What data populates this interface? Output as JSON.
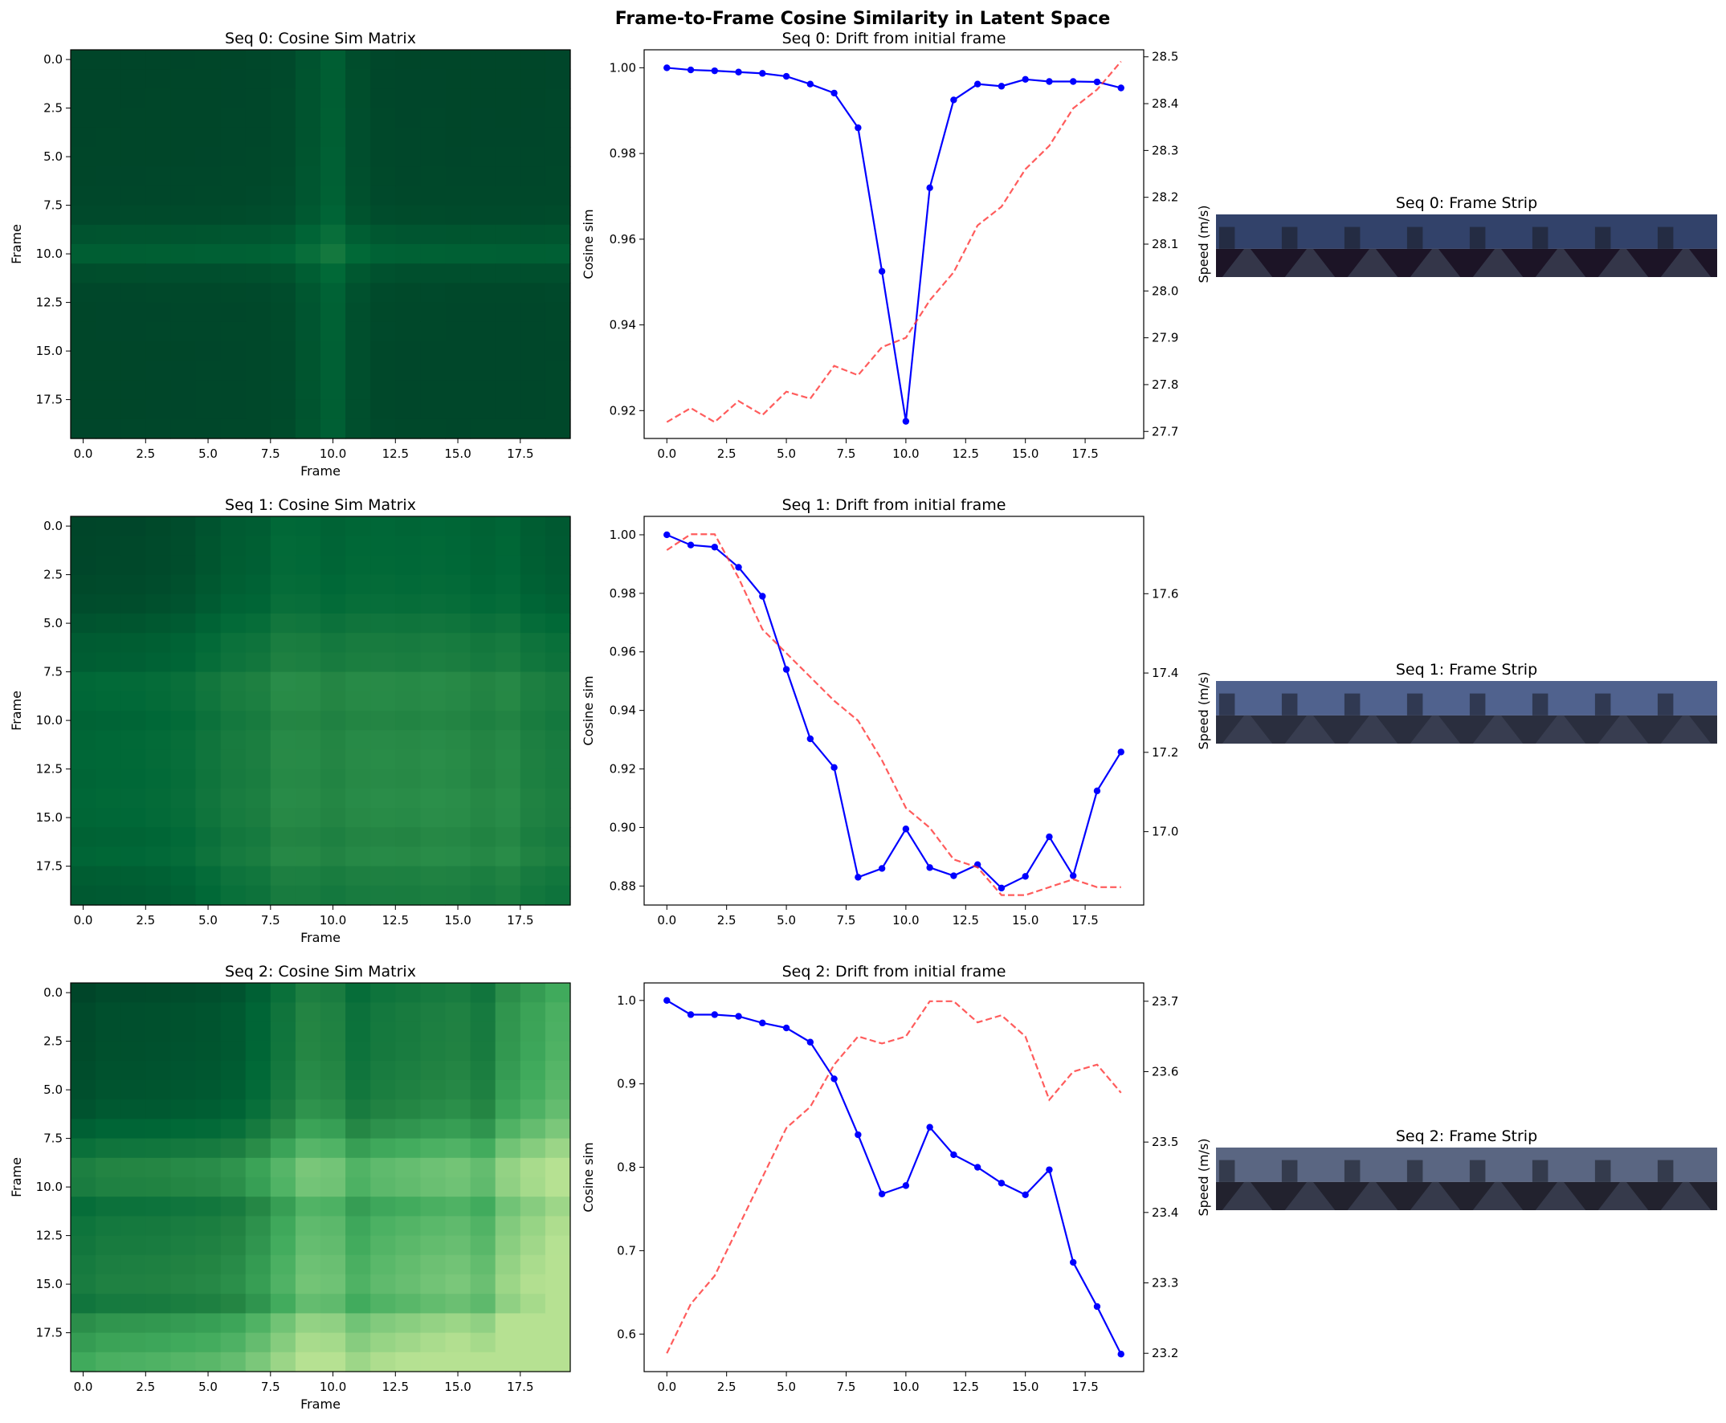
{
  "figure": {
    "suptitle": "Frame-to-Frame Cosine Similarity in Latent Space"
  },
  "colors": {
    "cosine_line": "#0000ff",
    "speed_line": "#ff3333",
    "colormap": "YlGn"
  },
  "chart_data": [
    {
      "type": "heatmap",
      "title": "Seq 0: Cosine Sim Matrix",
      "xlabel": "Frame",
      "ylabel": "Frame",
      "xticks": [
        "0.0",
        "2.5",
        "5.0",
        "7.5",
        "10.0",
        "12.5",
        "15.0",
        "17.5"
      ],
      "yticks": [
        "0.0",
        "2.5",
        "5.0",
        "7.5",
        "10.0",
        "12.5",
        "15.0",
        "17.5"
      ],
      "size": 20,
      "colormap": "YlGn",
      "profile": [
        1.0,
        0.9995,
        0.9993,
        0.999,
        0.9987,
        0.998,
        0.9962,
        0.9941,
        0.986,
        0.9525,
        0.9175,
        0.972,
        0.9925,
        0.9962,
        0.9957,
        0.9973,
        0.9968,
        0.9968,
        0.9967,
        0.9953
      ],
      "color_range": [
        0.45,
        1.0
      ]
    },
    {
      "type": "line",
      "title": "Seq 0: Drift from initial frame",
      "xlabel": "",
      "ylabel": "Cosine sim",
      "y2label": "Speed (m/s)",
      "xticks": [
        "0.0",
        "2.5",
        "5.0",
        "7.5",
        "10.0",
        "12.5",
        "15.0",
        "17.5"
      ],
      "xlim": [
        -0.95,
        19.95
      ],
      "ylim": [
        0.9135,
        1.0042
      ],
      "yticks": [
        "0.92",
        "0.94",
        "0.96",
        "0.98",
        "1.00"
      ],
      "y2lim": [
        27.685,
        28.515
      ],
      "y2ticks": [
        "27.7",
        "27.8",
        "27.9",
        "28.0",
        "28.1",
        "28.2",
        "28.3",
        "28.4",
        "28.5"
      ],
      "x": [
        0,
        1,
        2,
        3,
        4,
        5,
        6,
        7,
        8,
        9,
        10,
        11,
        12,
        13,
        14,
        15,
        16,
        17,
        18,
        19
      ],
      "series": [
        {
          "values": [
            1.0,
            0.9995,
            0.9993,
            0.999,
            0.9987,
            0.998,
            0.9962,
            0.9941,
            0.986,
            0.9525,
            0.9175,
            0.972,
            0.9925,
            0.9962,
            0.9957,
            0.9973,
            0.9968,
            0.9968,
            0.9967,
            0.9953
          ],
          "axis": "left",
          "style": "solid",
          "markers": true
        },
        {
          "values": [
            27.72,
            27.75,
            27.72,
            27.765,
            27.735,
            27.785,
            27.77,
            27.84,
            27.82,
            27.88,
            27.9,
            27.98,
            28.04,
            28.14,
            28.18,
            28.26,
            28.31,
            28.39,
            28.43,
            28.49
          ],
          "axis": "right",
          "style": "dashed",
          "markers": false
        }
      ]
    },
    {
      "type": "heatmap",
      "title": "Seq 1: Cosine Sim Matrix",
      "xlabel": "Frame",
      "ylabel": "Frame",
      "xticks": [
        "0.0",
        "2.5",
        "5.0",
        "7.5",
        "10.0",
        "12.5",
        "15.0",
        "17.5"
      ],
      "yticks": [
        "0.0",
        "2.5",
        "5.0",
        "7.5",
        "10.0",
        "12.5",
        "15.0",
        "17.5"
      ],
      "size": 20,
      "colormap": "YlGn",
      "profile": [
        1.0,
        0.9965,
        0.9958,
        0.9889,
        0.979,
        0.954,
        0.9303,
        0.9205,
        0.883,
        0.886,
        0.8995,
        0.8863,
        0.8835,
        0.8873,
        0.8793,
        0.8833,
        0.8968,
        0.8835,
        0.9125,
        0.9258
      ],
      "color_range": [
        0.45,
        1.0
      ]
    },
    {
      "type": "line",
      "title": "Seq 1: Drift from initial frame",
      "xlabel": "",
      "ylabel": "Cosine sim",
      "y2label": "Speed (m/s)",
      "xticks": [
        "0.0",
        "2.5",
        "5.0",
        "7.5",
        "10.0",
        "12.5",
        "15.0",
        "17.5"
      ],
      "xlim": [
        -0.95,
        19.95
      ],
      "ylim": [
        0.8735,
        1.0063
      ],
      "yticks": [
        "0.88",
        "0.90",
        "0.92",
        "0.94",
        "0.96",
        "0.98",
        "1.00"
      ],
      "y2lim": [
        16.815,
        17.795
      ],
      "y2ticks": [
        "17.0",
        "17.2",
        "17.4",
        "17.6"
      ],
      "x": [
        0,
        1,
        2,
        3,
        4,
        5,
        6,
        7,
        8,
        9,
        10,
        11,
        12,
        13,
        14,
        15,
        16,
        17,
        18,
        19
      ],
      "series": [
        {
          "values": [
            1.0,
            0.9965,
            0.9958,
            0.9889,
            0.979,
            0.954,
            0.9303,
            0.9205,
            0.883,
            0.886,
            0.8995,
            0.8863,
            0.8835,
            0.8873,
            0.8793,
            0.8833,
            0.8968,
            0.8835,
            0.9125,
            0.9258
          ],
          "axis": "left",
          "style": "solid",
          "markers": true
        },
        {
          "values": [
            17.71,
            17.75,
            17.75,
            17.64,
            17.51,
            17.45,
            17.39,
            17.33,
            17.28,
            17.18,
            17.06,
            17.01,
            16.93,
            16.91,
            16.84,
            16.84,
            16.86,
            16.88,
            16.86,
            16.86
          ],
          "axis": "right",
          "style": "dashed",
          "markers": false
        }
      ]
    },
    {
      "type": "heatmap",
      "title": "Seq 2: Cosine Sim Matrix",
      "xlabel": "Frame",
      "ylabel": "Frame",
      "xticks": [
        "0.0",
        "2.5",
        "5.0",
        "7.5",
        "10.0",
        "12.5",
        "15.0",
        "17.5"
      ],
      "yticks": [
        "0.0",
        "2.5",
        "5.0",
        "7.5",
        "10.0",
        "12.5",
        "15.0",
        "17.5"
      ],
      "size": 20,
      "colormap": "YlGn",
      "profile": [
        1.0,
        0.983,
        0.983,
        0.981,
        0.973,
        0.967,
        0.95,
        0.906,
        0.839,
        0.768,
        0.778,
        0.848,
        0.815,
        0.8,
        0.781,
        0.767,
        0.797,
        0.686,
        0.633,
        0.576
      ],
      "color_range": [
        0.4,
        1.0
      ]
    },
    {
      "type": "line",
      "title": "Seq 2: Drift from initial frame",
      "xlabel": "",
      "ylabel": "Cosine sim",
      "y2label": "Speed (m/s)",
      "xticks": [
        "0.0",
        "2.5",
        "5.0",
        "7.5",
        "10.0",
        "12.5",
        "15.0",
        "17.5"
      ],
      "xlim": [
        -0.95,
        19.95
      ],
      "ylim": [
        0.555,
        1.021
      ],
      "yticks": [
        "0.6",
        "0.7",
        "0.8",
        "0.9",
        "1.0"
      ],
      "y2lim": [
        23.174,
        23.726
      ],
      "y2ticks": [
        "23.2",
        "23.3",
        "23.4",
        "23.5",
        "23.6",
        "23.7"
      ],
      "x": [
        0,
        1,
        2,
        3,
        4,
        5,
        6,
        7,
        8,
        9,
        10,
        11,
        12,
        13,
        14,
        15,
        16,
        17,
        18,
        19
      ],
      "series": [
        {
          "values": [
            1.0,
            0.983,
            0.983,
            0.981,
            0.973,
            0.967,
            0.95,
            0.906,
            0.839,
            0.768,
            0.778,
            0.848,
            0.815,
            0.8,
            0.781,
            0.767,
            0.797,
            0.686,
            0.633,
            0.576
          ],
          "axis": "left",
          "style": "solid",
          "markers": true
        },
        {
          "values": [
            23.2,
            23.27,
            23.31,
            23.38,
            23.45,
            23.52,
            23.55,
            23.61,
            23.65,
            23.64,
            23.65,
            23.7,
            23.7,
            23.67,
            23.68,
            23.65,
            23.56,
            23.6,
            23.61,
            23.57
          ],
          "axis": "right",
          "style": "dashed",
          "markers": false
        }
      ]
    }
  ],
  "strips": [
    {
      "title": "Seq 0: Frame Strip",
      "frames": 8,
      "sky": "#32426a",
      "ground": "#1c1426"
    },
    {
      "title": "Seq 1: Frame Strip",
      "frames": 8,
      "sky": "#50628e",
      "ground": "#2a2e3e"
    },
    {
      "title": "Seq 2: Frame Strip",
      "frames": 8,
      "sky": "#5a6682",
      "ground": "#22222e"
    }
  ]
}
